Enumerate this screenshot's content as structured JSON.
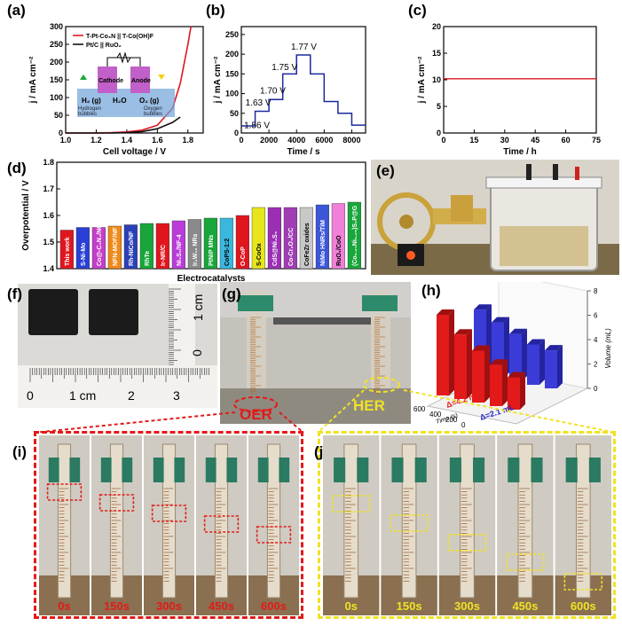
{
  "panels": {
    "a": {
      "label": "(a)",
      "legend": [
        "T-Pt-Co₃N || T-Co(OH)F",
        "Pt/C || RuO₂"
      ],
      "legend_colors": [
        "#e0161f",
        "#111111"
      ],
      "xlabel": "Cell voltage / V",
      "ylabel": "j / mA cm⁻²",
      "xticks": [
        "1.0",
        "1.2",
        "1.4",
        "1.6",
        "1.8"
      ],
      "yticks": [
        "0",
        "50",
        "100",
        "150",
        "200",
        "250",
        "300"
      ],
      "inset": {
        "cathode": "Cathode",
        "anode": "Anode",
        "h2": "H₂ (g)",
        "h2o": "H₂O",
        "o2": "O₂ (g)",
        "hyd": "Hydrogen",
        "hyd2": "bubbles",
        "oxy": "Oxygen",
        "oxy2": "bubbles"
      }
    },
    "b": {
      "label": "(b)",
      "xlabel": "Time / s",
      "ylabel": "j / mA cm⁻²",
      "xticks": [
        "0",
        "2000",
        "4000",
        "6000",
        "8000"
      ],
      "yticks": [
        "0",
        "50",
        "100",
        "150",
        "200",
        "250"
      ],
      "annotations": [
        "1.56 V",
        "1.63 V",
        "1.70 V",
        "1.75 V",
        "1.77 V"
      ]
    },
    "c": {
      "label": "(c)",
      "xlabel": "Time / h",
      "ylabel": "j / mA cm⁻²",
      "xticks": [
        "0",
        "15",
        "30",
        "45",
        "60",
        "75"
      ],
      "yticks": [
        "0",
        "5",
        "10",
        "15",
        "20"
      ]
    },
    "d": {
      "label": "(d)",
      "xlabel": "Electrocatalysts",
      "ylabel": "Overpotential / V",
      "yticks": [
        "1.4",
        "1.5",
        "1.6",
        "1.7",
        "1.8"
      ]
    },
    "e": {
      "label": "(e)"
    },
    "f": {
      "label": "(f)",
      "ruler_v": [
        "1 cm",
        "0"
      ],
      "ruler_h": [
        "0",
        "1 cm",
        "2",
        "3"
      ]
    },
    "g": {
      "label": "(g)",
      "oer": "OER",
      "her": "HER"
    },
    "h": {
      "label": "(h)",
      "ylabel": "Volume (mL)",
      "xlabel": "Time (s)",
      "zticks": [
        "0",
        "2",
        "4",
        "6",
        "8"
      ],
      "xticks": [
        "600",
        "400",
        "200",
        "0"
      ],
      "red_note": "Δ=4.2 mL",
      "blue_note": "Δ=2.1 mL"
    },
    "i": {
      "label": "(i)",
      "times": [
        "0s",
        "150s",
        "300s",
        "450s",
        "600s"
      ]
    },
    "j": {
      "label": "(j)",
      "times": [
        "0s",
        "150s",
        "300s",
        "450s",
        "600s"
      ]
    }
  },
  "chart_data": [
    {
      "type": "line",
      "panel": "a",
      "xlabel": "Cell voltage / V",
      "ylabel": "j / mA cm⁻²",
      "xlim": [
        1.0,
        1.9
      ],
      "ylim": [
        0,
        300
      ],
      "series": [
        {
          "name": "T-Pt-Co₃N || T-Co(OH)F",
          "color": "#e0161f",
          "x": [
            1.0,
            1.2,
            1.3,
            1.4,
            1.5,
            1.6,
            1.7,
            1.75,
            1.8,
            1.82
          ],
          "y": [
            0,
            0,
            1,
            3,
            8,
            22,
            70,
            140,
            250,
            300
          ]
        },
        {
          "name": "Pt/C || RuO₂",
          "color": "#111111",
          "x": [
            1.0,
            1.3,
            1.4,
            1.5,
            1.6,
            1.7,
            1.75
          ],
          "y": [
            0,
            0,
            1,
            4,
            12,
            30,
            45
          ]
        }
      ]
    },
    {
      "type": "line",
      "panel": "b",
      "xlabel": "Time / s",
      "ylabel": "j / mA cm⁻²",
      "xlim": [
        0,
        9000
      ],
      "ylim": [
        0,
        270
      ],
      "series": [
        {
          "color": "#1a2a9c",
          "x": [
            0,
            1000,
            1000,
            2000,
            2000,
            3000,
            3000,
            4000,
            4000,
            5000,
            5000,
            6000,
            6000,
            7000,
            7000,
            8000,
            8000,
            9000
          ],
          "y": [
            18,
            18,
            55,
            55,
            85,
            85,
            150,
            150,
            198,
            198,
            150,
            150,
            80,
            80,
            50,
            50,
            20,
            20
          ]
        }
      ]
    },
    {
      "type": "line",
      "panel": "c",
      "xlabel": "Time / h",
      "ylabel": "j / mA cm⁻²",
      "xlim": [
        0,
        75
      ],
      "ylim": [
        0,
        20
      ],
      "series": [
        {
          "color": "#e0161f",
          "x": [
            0,
            75
          ],
          "y": [
            10.2,
            10.2
          ]
        }
      ]
    },
    {
      "type": "bar",
      "panel": "d",
      "xlabel": "Electrocatalysts",
      "ylabel": "Overpotential / V",
      "ylim": [
        1.4,
        1.8
      ],
      "categories": [
        "This work",
        "S-Ni-Mo",
        "Co@-C₃N₄/NG",
        "NFN-MOF/NF",
        "Rh-NiCo/NF",
        "RhTe",
        "Ir-NR/C",
        "Ni₃S₂/NF-4",
        "Ir₂W₁₀ NRs",
        "PtNiP MNs",
        "CoPS-1:2",
        "O-CoP",
        "S-CoOx",
        "CdS@Ni₄S₃",
        "Co-Cr₂O₃/CC",
        "CoFeZr oxides",
        "NiMo HNRs/TiM",
        "RuO₂/CoO",
        "(Co₀.₂₁Ni₀.₂₅)S₂P@G"
      ],
      "values": [
        1.545,
        1.555,
        1.555,
        1.56,
        1.565,
        1.57,
        1.57,
        1.58,
        1.585,
        1.59,
        1.59,
        1.6,
        1.63,
        1.63,
        1.63,
        1.63,
        1.64,
        1.645,
        1.65
      ],
      "colors": [
        "#e0161f",
        "#2a3fd6",
        "#c43ec8",
        "#f08a18",
        "#2b40b8",
        "#18a63a",
        "#e0161f",
        "#b93cd8",
        "#8a8a8a",
        "#18a63a",
        "#3bb7dd",
        "#e0161f",
        "#e6e61a",
        "#9b2fb3",
        "#a03cb4",
        "#c8c8c8",
        "#3c56d8",
        "#f080d8",
        "#18a63a"
      ]
    },
    {
      "type": "bar",
      "panel": "h",
      "ylabel": "Volume (mL)",
      "xlabel": "Time (s)",
      "categories": [
        "0",
        "150",
        "300",
        "450",
        "600"
      ],
      "series": [
        {
          "name": "",
          "color": "#e21a1a",
          "values": [
            7.0,
            5.6,
            4.5,
            3.6,
            2.8
          ]
        },
        {
          "name": "",
          "color": "#3b3bd8",
          "values": [
            5.6,
            4.8,
            4.1,
            3.5,
            3.3
          ]
        }
      ]
    }
  ]
}
